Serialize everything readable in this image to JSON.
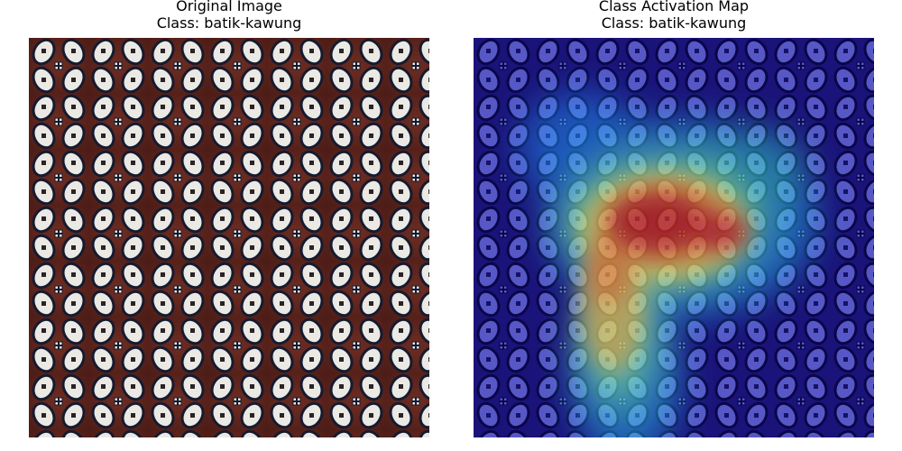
{
  "panels": {
    "left": {
      "title": "Original Image",
      "class_line": "Class: batik-kawung"
    },
    "right": {
      "title": "Class Activation Map",
      "class_line": "Class: batik-kawung"
    }
  },
  "colors": {
    "fabric_background": "#5a231c",
    "motif_fill": "#ebe9e4",
    "motif_outline": "#181a2c",
    "cam_base": "#1a1290",
    "cam_hot": "#c0120e"
  }
}
